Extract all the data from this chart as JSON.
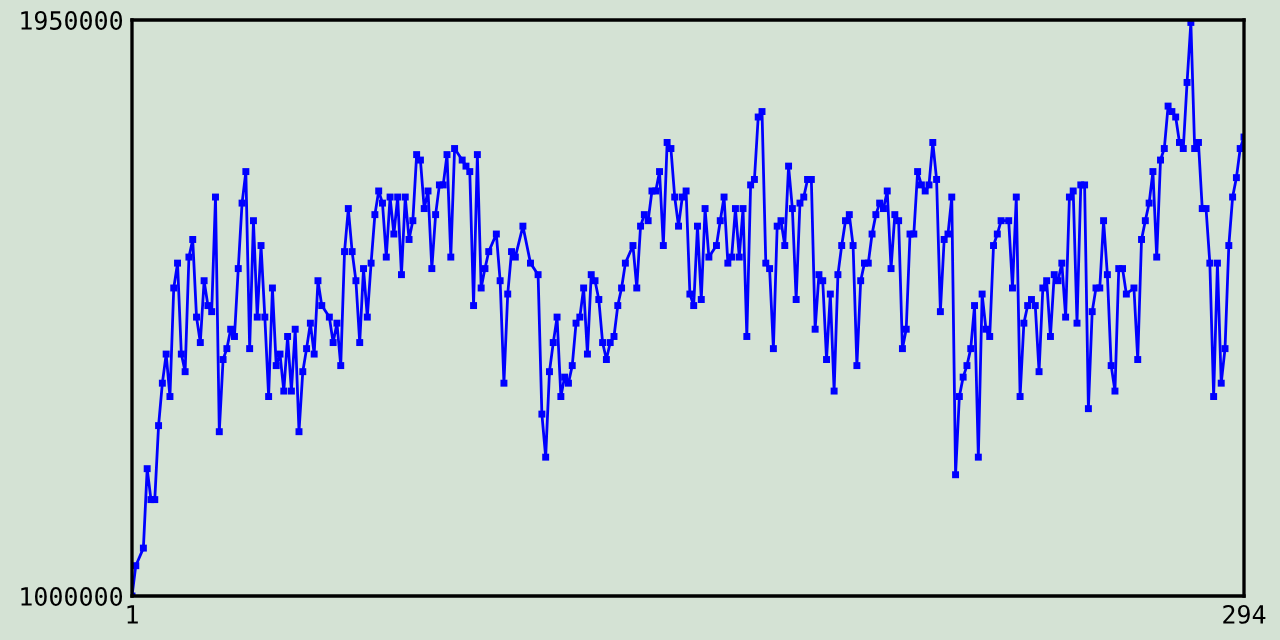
{
  "chart_data": {
    "type": "line",
    "marker": "square",
    "line_style": "solid",
    "xlim": [
      1,
      294
    ],
    "ylim": [
      1000000,
      1950000
    ],
    "xticks": [
      1,
      294
    ],
    "yticks": [
      1000000,
      1950000
    ],
    "x": [
      1,
      2,
      4,
      5,
      6,
      7,
      8,
      9,
      10,
      11,
      12,
      13,
      14,
      15,
      16,
      17,
      18,
      19,
      20,
      21,
      22,
      23,
      24,
      25,
      26,
      27,
      28,
      29,
      30,
      31,
      32,
      33,
      34,
      35,
      36,
      37,
      38,
      39,
      40,
      41,
      42,
      43,
      44,
      45,
      46,
      47,
      48,
      49,
      50,
      51,
      53,
      54,
      55,
      56,
      57,
      58,
      59,
      60,
      61,
      62,
      63,
      64,
      65,
      66,
      67,
      68,
      69,
      70,
      71,
      72,
      73,
      74,
      75,
      76,
      77,
      78,
      79,
      80,
      81,
      82,
      83,
      84,
      85,
      86,
      88,
      89,
      90,
      91,
      92,
      93,
      94,
      95,
      97,
      98,
      99,
      100,
      101,
      102,
      104,
      106,
      108,
      109,
      110,
      111,
      112,
      113,
      114,
      115,
      116,
      117,
      118,
      119,
      120,
      121,
      122,
      123,
      124,
      125,
      126,
      127,
      128,
      129,
      130,
      131,
      133,
      134,
      135,
      136,
      137,
      138,
      139,
      140,
      141,
      142,
      143,
      144,
      145,
      146,
      147,
      148,
      149,
      150,
      151,
      152,
      153,
      155,
      156,
      157,
      158,
      159,
      160,
      161,
      162,
      163,
      164,
      165,
      166,
      167,
      168,
      169,
      170,
      171,
      172,
      173,
      174,
      175,
      176,
      177,
      178,
      179,
      180,
      181,
      182,
      183,
      184,
      185,
      186,
      187,
      188,
      189,
      190,
      191,
      192,
      193,
      194,
      195,
      196,
      197,
      198,
      199,
      200,
      201,
      202,
      203,
      204,
      205,
      206,
      207,
      208,
      209,
      210,
      211,
      212,
      213,
      214,
      215,
      216,
      217,
      218,
      219,
      220,
      221,
      222,
      223,
      224,
      225,
      226,
      227,
      228,
      229,
      230,
      232,
      233,
      234,
      235,
      236,
      237,
      238,
      239,
      240,
      241,
      242,
      243,
      244,
      245,
      246,
      247,
      248,
      249,
      250,
      251,
      252,
      253,
      254,
      255,
      256,
      257,
      258,
      259,
      260,
      261,
      262,
      263,
      265,
      266,
      267,
      268,
      269,
      270,
      271,
      272,
      273,
      274,
      275,
      276,
      277,
      278,
      279,
      280,
      281,
      282,
      283,
      284,
      285,
      286,
      287,
      288,
      289,
      290,
      291,
      292,
      293,
      294
    ],
    "series": [
      {
        "color": "#0000ff",
        "values": [
          1000000,
          1050000,
          1079000,
          1210000,
          1159000,
          1159000,
          1281000,
          1351000,
          1399000,
          1329000,
          1508000,
          1549000,
          1399000,
          1370000,
          1559000,
          1588000,
          1460000,
          1418000,
          1520000,
          1479000,
          1469000,
          1658000,
          1271000,
          1390000,
          1408000,
          1440000,
          1428000,
          1540000,
          1648000,
          1700000,
          1408000,
          1619000,
          1460000,
          1578000,
          1460000,
          1329000,
          1508000,
          1380000,
          1399000,
          1338000,
          1428000,
          1338000,
          1440000,
          1271000,
          1370000,
          1408000,
          1450000,
          1399000,
          1520000,
          1479000,
          1460000,
          1418000,
          1450000,
          1380000,
          1568000,
          1639000,
          1568000,
          1520000,
          1418000,
          1540000,
          1460000,
          1549000,
          1629000,
          1668000,
          1648000,
          1559000,
          1658000,
          1597000,
          1658000,
          1530000,
          1658000,
          1588000,
          1619000,
          1728000,
          1719000,
          1639000,
          1668000,
          1540000,
          1629000,
          1678000,
          1678000,
          1728000,
          1559000,
          1738000,
          1719000,
          1709000,
          1700000,
          1479000,
          1728000,
          1508000,
          1540000,
          1568000,
          1597000,
          1520000,
          1351000,
          1498000,
          1568000,
          1559000,
          1610000,
          1549000,
          1530000,
          1300000,
          1229000,
          1370000,
          1418000,
          1460000,
          1329000,
          1361000,
          1351000,
          1380000,
          1450000,
          1460000,
          1508000,
          1399000,
          1530000,
          1520000,
          1489000,
          1418000,
          1390000,
          1418000,
          1428000,
          1479000,
          1508000,
          1549000,
          1578000,
          1508000,
          1610000,
          1629000,
          1619000,
          1668000,
          1668000,
          1700000,
          1578000,
          1748000,
          1738000,
          1658000,
          1610000,
          1658000,
          1668000,
          1498000,
          1479000,
          1610000,
          1489000,
          1639000,
          1559000,
          1578000,
          1619000,
          1658000,
          1549000,
          1559000,
          1639000,
          1559000,
          1639000,
          1428000,
          1678000,
          1687000,
          1790000,
          1799000,
          1549000,
          1540000,
          1408000,
          1610000,
          1619000,
          1578000,
          1709000,
          1639000,
          1489000,
          1648000,
          1658000,
          1687000,
          1687000,
          1440000,
          1530000,
          1520000,
          1390000,
          1498000,
          1338000,
          1530000,
          1578000,
          1619000,
          1629000,
          1578000,
          1380000,
          1520000,
          1549000,
          1549000,
          1597000,
          1629000,
          1648000,
          1639000,
          1668000,
          1540000,
          1629000,
          1619000,
          1408000,
          1440000,
          1597000,
          1597000,
          1700000,
          1678000,
          1668000,
          1678000,
          1748000,
          1687000,
          1469000,
          1588000,
          1597000,
          1658000,
          1200000,
          1329000,
          1361000,
          1380000,
          1408000,
          1479000,
          1229000,
          1498000,
          1440000,
          1428000,
          1578000,
          1597000,
          1619000,
          1619000,
          1508000,
          1658000,
          1329000,
          1450000,
          1479000,
          1489000,
          1479000,
          1370000,
          1508000,
          1520000,
          1428000,
          1530000,
          1520000,
          1549000,
          1460000,
          1658000,
          1668000,
          1450000,
          1678000,
          1678000,
          1309000,
          1469000,
          1508000,
          1508000,
          1619000,
          1530000,
          1380000,
          1338000,
          1540000,
          1540000,
          1498000,
          1508000,
          1390000,
          1588000,
          1619000,
          1648000,
          1700000,
          1559000,
          1719000,
          1738000,
          1808000,
          1799000,
          1790000,
          1748000,
          1738000,
          1847000,
          1946000,
          1738000,
          1748000,
          1639000,
          1639000,
          1549000,
          1329000,
          1549000,
          1351000,
          1408000,
          1578000,
          1658000,
          1690000,
          1738000,
          1757000
        ]
      }
    ]
  }
}
